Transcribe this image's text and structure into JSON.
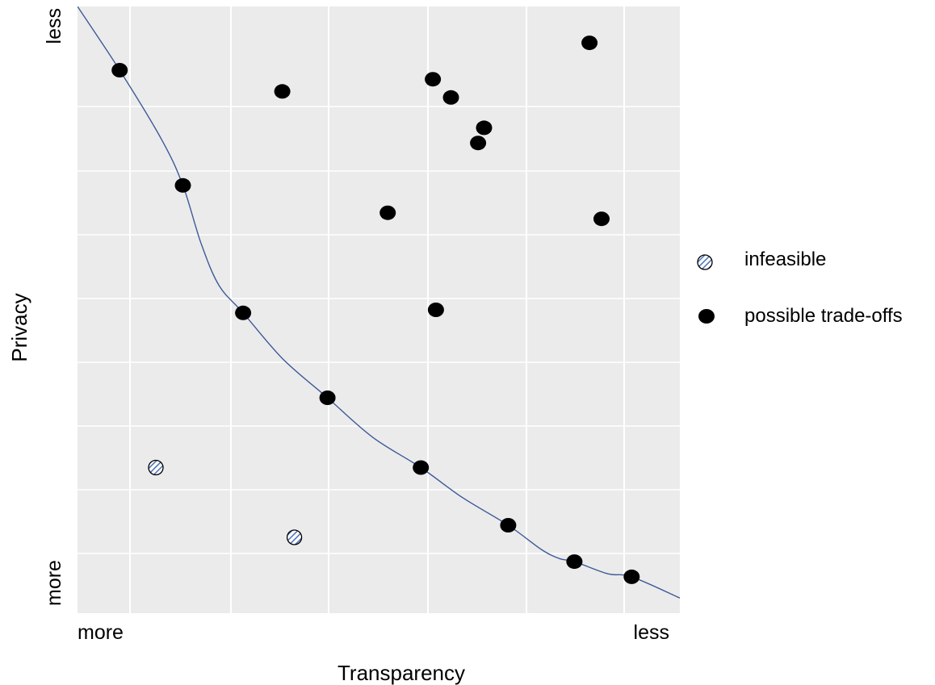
{
  "chart_data": {
    "type": "scatter",
    "title": "",
    "xlabel": "Transparency",
    "ylabel": "Privacy",
    "x_tick_labels": {
      "left": "more",
      "right": "less"
    },
    "y_tick_labels": {
      "top": "less",
      "bottom": "more"
    },
    "xlim": [
      0,
      100
    ],
    "ylim": [
      0,
      100
    ],
    "grid": true,
    "background": "#ebebeb",
    "legend_position": "right",
    "series": [
      {
        "name": "infeasible",
        "marker": "hatched-circle",
        "color": "#4a6fb5",
        "points": [
          {
            "x": 13,
            "y": 24
          },
          {
            "x": 36,
            "y": 12.5
          }
        ]
      },
      {
        "name": "possible trade-offs",
        "marker": "filled-ellipse",
        "color": "#000000",
        "points": [
          {
            "x": 7,
            "y": 89.5
          },
          {
            "x": 17.5,
            "y": 70.5
          },
          {
            "x": 27.5,
            "y": 49.5
          },
          {
            "x": 41.5,
            "y": 35.5
          },
          {
            "x": 57,
            "y": 24
          },
          {
            "x": 71.5,
            "y": 14.5
          },
          {
            "x": 82.5,
            "y": 8.5
          },
          {
            "x": 92,
            "y": 6
          },
          {
            "x": 34,
            "y": 86
          },
          {
            "x": 59,
            "y": 88
          },
          {
            "x": 62,
            "y": 85
          },
          {
            "x": 66.5,
            "y": 77.5
          },
          {
            "x": 67.5,
            "y": 80
          },
          {
            "x": 85,
            "y": 94
          },
          {
            "x": 51.5,
            "y": 66
          },
          {
            "x": 59.5,
            "y": 50
          },
          {
            "x": 87,
            "y": 65
          }
        ]
      }
    ],
    "frontier_curve": {
      "color": "#3d5a98",
      "points": [
        [
          0,
          100
        ],
        [
          7,
          89.5
        ],
        [
          14,
          78
        ],
        [
          17.5,
          70.5
        ],
        [
          20.5,
          61
        ],
        [
          23.5,
          54
        ],
        [
          27.5,
          49.5
        ],
        [
          34,
          42
        ],
        [
          41.5,
          35.5
        ],
        [
          49,
          29
        ],
        [
          57,
          24
        ],
        [
          64,
          19
        ],
        [
          71.5,
          14.5
        ],
        [
          77,
          10.5
        ],
        [
          80,
          9
        ],
        [
          82.5,
          8.5
        ],
        [
          88,
          6.5
        ],
        [
          92,
          6
        ],
        [
          100,
          2.5
        ]
      ]
    }
  }
}
